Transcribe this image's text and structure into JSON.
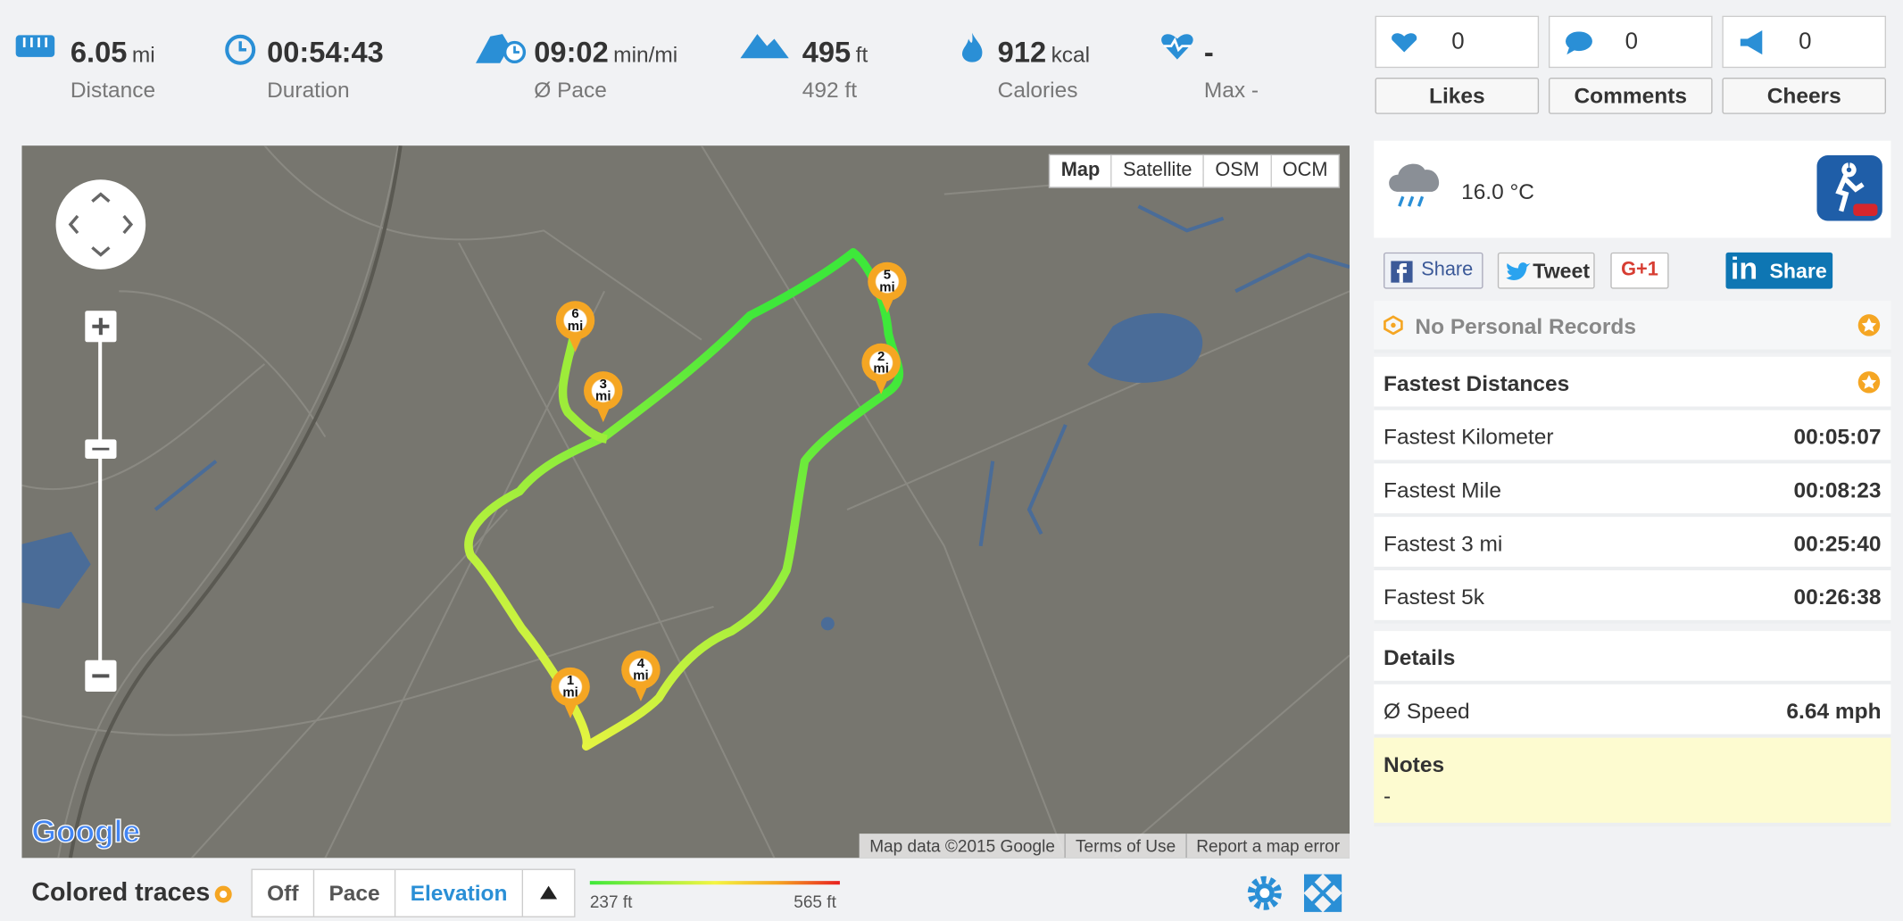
{
  "stats": [
    {
      "value": "6.05",
      "unit": "mi",
      "label": "Distance"
    },
    {
      "value": "00:54:43",
      "label": "Duration"
    },
    {
      "value": "09:02",
      "unit": "min/mi",
      "label": "Ø Pace"
    },
    {
      "value": "495",
      "unit": "ft",
      "label": "492 ft"
    },
    {
      "value": "912",
      "unit": "kcal",
      "label": "Calories"
    },
    {
      "value": "-",
      "label": "Max -"
    }
  ],
  "social": [
    {
      "count": 0,
      "label": "Likes"
    },
    {
      "count": 0,
      "label": "Comments"
    },
    {
      "count": 0,
      "label": "Cheers"
    }
  ],
  "map": {
    "types": [
      "Map",
      "Satellite",
      "OSM",
      "OCM"
    ],
    "markers": [
      {
        "num": "1",
        "unit": "mi"
      },
      {
        "num": "2",
        "unit": "mi"
      },
      {
        "num": "3",
        "unit": "mi"
      },
      {
        "num": "4",
        "unit": "mi"
      },
      {
        "num": "5",
        "unit": "mi"
      },
      {
        "num": "6",
        "unit": "mi"
      }
    ],
    "logo": "Google",
    "attribution": [
      "Map data ©2015 Google",
      "Terms of Use",
      "Report a map error"
    ]
  },
  "weather": {
    "temperature": "16.0 °C"
  },
  "share": [
    "Share",
    "Tweet",
    "G+1",
    "Share"
  ],
  "records": "No Personal Records",
  "fastest": {
    "title": "Fastest Distances",
    "rows": [
      [
        "Fastest Kilometer",
        "00:05:07"
      ],
      [
        "Fastest Mile",
        "00:08:23"
      ],
      [
        "Fastest 3 mi",
        "00:25:40"
      ],
      [
        "Fastest 5k",
        "00:26:38"
      ]
    ]
  },
  "details": {
    "title": "Details",
    "rows": [
      [
        "Ø Speed",
        "6.64 mph"
      ]
    ]
  },
  "notes": {
    "title": "Notes",
    "text": "-"
  },
  "traces": {
    "title": "Colored traces",
    "buttons": [
      "Off",
      "Pace",
      "Elevation"
    ],
    "min": "237 ft",
    "max": "565 ft"
  }
}
